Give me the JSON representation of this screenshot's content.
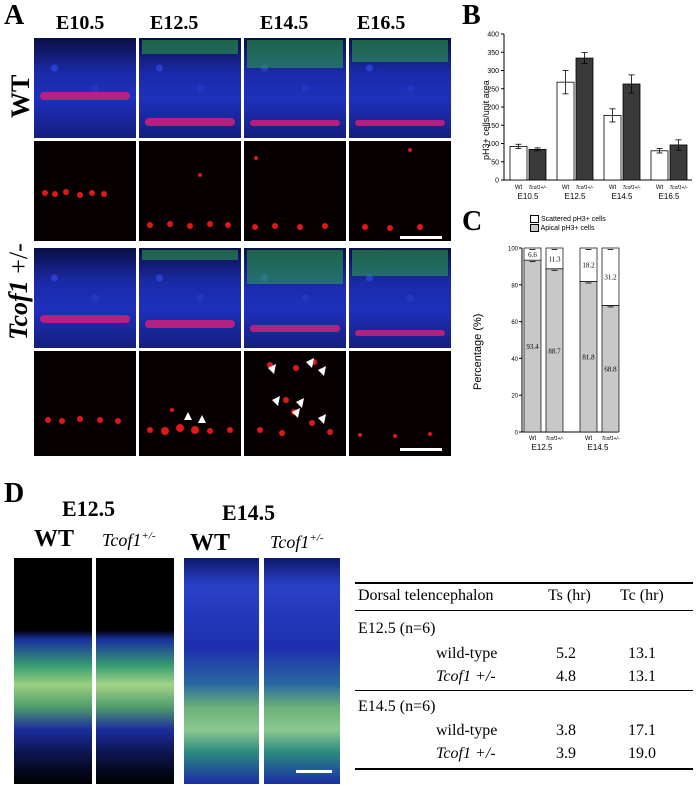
{
  "panels": {
    "A": {
      "letter": "A",
      "stages": [
        "E10.5",
        "E12.5",
        "E14.5",
        "E16.5"
      ],
      "row_labels": {
        "wt": "WT",
        "tcof_gene": "Tcof1",
        "tcof_suffix": " +/-"
      }
    },
    "B": {
      "letter": "B",
      "ylabel": "pH3+ cells/unit area",
      "y_ticks": [
        "0",
        "50",
        "100",
        "150",
        "200",
        "250",
        "300",
        "350",
        "400"
      ],
      "genotype_labels": [
        "Wt",
        "Tcof1+/-"
      ],
      "stage_labels": [
        "E10.5",
        "E12.5",
        "E14.5",
        "E16.5"
      ]
    },
    "C": {
      "letter": "C",
      "ylabel": "Percentage (%)",
      "legend": [
        "Scattered pH3+ cells",
        "Apical pH3+ cells"
      ],
      "y_ticks": [
        "0",
        "20",
        "40",
        "60",
        "80",
        "100"
      ],
      "genotype_labels": [
        "Wt",
        "Tcof1+/-"
      ],
      "stage_labels": [
        "E12.5",
        "E14.5"
      ]
    },
    "D": {
      "letter": "D",
      "groups": [
        {
          "stage": "E12.5",
          "wt": "WT",
          "mut_gene": "Tcof1",
          "mut_sup": "+/-"
        },
        {
          "stage": "E14.5",
          "wt": "WT",
          "mut_gene": "Tcof1",
          "mut_sup": "+/-"
        }
      ],
      "table": {
        "header": [
          "Dorsal telencephalon",
          "Ts (hr)",
          "Tc (hr)"
        ],
        "sections": [
          {
            "title": "E12.5 (n=6)",
            "rows": [
              {
                "label": "wild-type",
                "ts": "5.2",
                "tc": "13.1",
                "italic": false
              },
              {
                "label": "Tcof1 +/-",
                "ts": "4.8",
                "tc": "13.1",
                "italic": true
              }
            ]
          },
          {
            "title": "E14.5 (n=6)",
            "rows": [
              {
                "label": "wild-type",
                "ts": "3.8",
                "tc": "17.1",
                "italic": false
              },
              {
                "label": "Tcof1 +/-",
                "ts": "3.9",
                "tc": "19.0",
                "italic": true
              }
            ]
          }
        ]
      }
    }
  },
  "chart_data": [
    {
      "type": "bar",
      "panel": "B",
      "categories": [
        "E10.5",
        "E12.5",
        "E14.5",
        "E16.5"
      ],
      "series": [
        {
          "name": "Wt",
          "values": [
            92,
            268,
            177,
            80
          ],
          "errors": [
            6,
            32,
            18,
            6
          ],
          "color": "#ffffff"
        },
        {
          "name": "Tcof1+/-",
          "values": [
            84,
            334,
            263,
            96
          ],
          "errors": [
            4,
            15,
            25,
            14
          ],
          "color": "#3a3a3a"
        }
      ],
      "ylabel": "pH3+ cells/unit area",
      "ylim": [
        0,
        400
      ]
    },
    {
      "type": "bar",
      "panel": "C",
      "stacked": true,
      "categories": [
        "E12.5 Wt",
        "E12.5 Tcof1+/-",
        "E14.5 Wt",
        "E14.5 Tcof1+/-"
      ],
      "series": [
        {
          "name": "Apical pH3+ cells",
          "values": [
            93.4,
            88.7,
            81.8,
            68.8
          ],
          "color": "#c8c8c8"
        },
        {
          "name": "Scattered pH3+ cells",
          "values": [
            6.6,
            11.3,
            18.2,
            31.2
          ],
          "color": "#ffffff"
        }
      ],
      "ylabel": "Percentage (%)",
      "ylim": [
        0,
        100
      ]
    }
  ]
}
